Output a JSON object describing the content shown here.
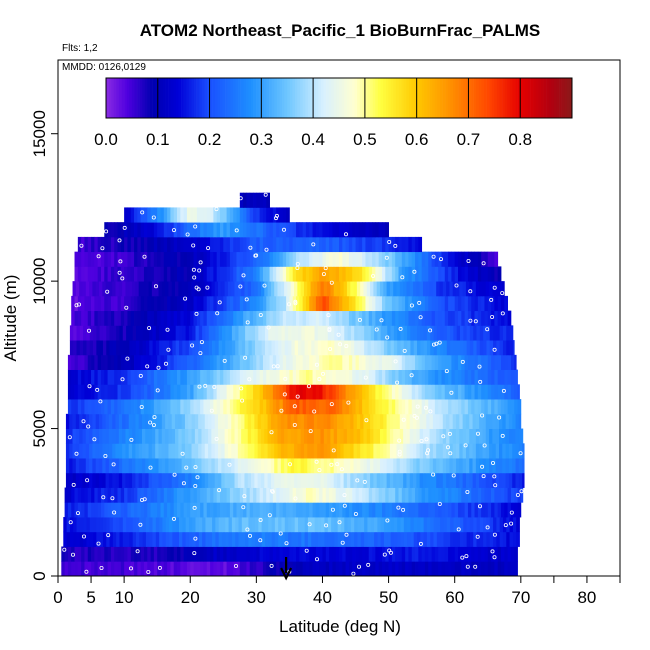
{
  "chart_data": {
    "type": "heatmap",
    "title": "ATOM2 Northeast_Pacific_1 BioBurnFrac_PALMS",
    "flights_label": "Flts: 1,2",
    "dates_label": "MMDD: 0126,0129",
    "xlabel": "Latitude (deg N)",
    "ylabel": "Altitude (m)",
    "xlim": [
      0,
      85
    ],
    "ylim": [
      0,
      17500
    ],
    "x_ticks": [
      0,
      5,
      10,
      20,
      30,
      40,
      50,
      60,
      70,
      80
    ],
    "x_tick_labels": [
      "0",
      "5",
      "10",
      "20",
      "30",
      "40",
      "50",
      "60",
      "70",
      "80"
    ],
    "x_minor_ticks": [
      75,
      85
    ],
    "y_ticks": [
      0,
      5000,
      10000,
      15000
    ],
    "y_tick_labels": [
      "0",
      "5000",
      "10000",
      "15000"
    ],
    "colorbar": {
      "min": 0.0,
      "max": 0.9,
      "tick_values": [
        0.0,
        0.1,
        0.2,
        0.3,
        0.4,
        0.5,
        0.6,
        0.7,
        0.8
      ],
      "tick_labels": [
        "0.0",
        "0.1",
        "0.2",
        "0.3",
        "0.4",
        "0.5",
        "0.6",
        "0.7",
        "0.8"
      ],
      "stops": [
        {
          "v": 0.0,
          "c": "#8a2be2"
        },
        {
          "v": 0.04,
          "c": "#5000e0"
        },
        {
          "v": 0.09,
          "c": "#0000b0"
        },
        {
          "v": 0.14,
          "c": "#0000d8"
        },
        {
          "v": 0.2,
          "c": "#1a50ff"
        },
        {
          "v": 0.28,
          "c": "#1e90ff"
        },
        {
          "v": 0.35,
          "c": "#6ec6ff"
        },
        {
          "v": 0.42,
          "c": "#d8f0ff"
        },
        {
          "v": 0.48,
          "c": "#ffffd0"
        },
        {
          "v": 0.53,
          "c": "#ffff40"
        },
        {
          "v": 0.6,
          "c": "#ffc800"
        },
        {
          "v": 0.67,
          "c": "#ff8c00"
        },
        {
          "v": 0.74,
          "c": "#ff4500"
        },
        {
          "v": 0.8,
          "c": "#e60000"
        },
        {
          "v": 0.86,
          "c": "#b00010"
        },
        {
          "v": 0.9,
          "c": "#8b1a1a"
        }
      ]
    },
    "marker_latitude": 34.5,
    "bin_height_m": 500,
    "rows": [
      {
        "alt": 250,
        "lat_min": 0.5,
        "lat_max": 69.5,
        "k": [
          [
            0,
            0.06
          ],
          [
            15,
            0.04
          ],
          [
            25,
            0.03
          ],
          [
            35,
            0.1
          ],
          [
            45,
            0.12
          ],
          [
            55,
            0.12
          ],
          [
            65,
            0.11
          ],
          [
            69.5,
            0.12
          ]
        ]
      },
      {
        "alt": 750,
        "lat_min": 0.5,
        "lat_max": 69.5,
        "k": [
          [
            0,
            0.07
          ],
          [
            15,
            0.07
          ],
          [
            24,
            0.12
          ],
          [
            35,
            0.14
          ],
          [
            45,
            0.14
          ],
          [
            55,
            0.16
          ],
          [
            69.5,
            0.12
          ]
        ]
      },
      {
        "alt": 1250,
        "lat_min": 0.8,
        "lat_max": 69.8,
        "k": [
          [
            0,
            0.12
          ],
          [
            10,
            0.16
          ],
          [
            20,
            0.22
          ],
          [
            30,
            0.26
          ],
          [
            40,
            0.24
          ],
          [
            50,
            0.22
          ],
          [
            60,
            0.18
          ],
          [
            69.8,
            0.14
          ]
        ]
      },
      {
        "alt": 1750,
        "lat_min": 0.8,
        "lat_max": 69.8,
        "k": [
          [
            0,
            0.14
          ],
          [
            10,
            0.2
          ],
          [
            20,
            0.3
          ],
          [
            28,
            0.34
          ],
          [
            40,
            0.34
          ],
          [
            50,
            0.3
          ],
          [
            60,
            0.22
          ],
          [
            69.8,
            0.14
          ]
        ]
      },
      {
        "alt": 2250,
        "lat_min": 1.0,
        "lat_max": 70.0,
        "k": [
          [
            0,
            0.15
          ],
          [
            10,
            0.22
          ],
          [
            20,
            0.3
          ],
          [
            30,
            0.32
          ],
          [
            40,
            0.3
          ],
          [
            50,
            0.26
          ],
          [
            60,
            0.2
          ],
          [
            70,
            0.14
          ]
        ]
      },
      {
        "alt": 2750,
        "lat_min": 1.0,
        "lat_max": 70.3,
        "k": [
          [
            0,
            0.13
          ],
          [
            10,
            0.18
          ],
          [
            20,
            0.3
          ],
          [
            30,
            0.4
          ],
          [
            38,
            0.48
          ],
          [
            45,
            0.42
          ],
          [
            55,
            0.3
          ],
          [
            65,
            0.22
          ],
          [
            70.3,
            0.18
          ]
        ]
      },
      {
        "alt": 3250,
        "lat_min": 1.2,
        "lat_max": 70.5,
        "k": [
          [
            0,
            0.1
          ],
          [
            10,
            0.16
          ],
          [
            20,
            0.26
          ],
          [
            28,
            0.4
          ],
          [
            38,
            0.46
          ],
          [
            45,
            0.38
          ],
          [
            55,
            0.28
          ],
          [
            65,
            0.2
          ],
          [
            70.5,
            0.16
          ]
        ]
      },
      {
        "alt": 3750,
        "lat_min": 1.2,
        "lat_max": 70.5,
        "k": [
          [
            0,
            0.14
          ],
          [
            10,
            0.24
          ],
          [
            20,
            0.34
          ],
          [
            28,
            0.44
          ],
          [
            36,
            0.54
          ],
          [
            44,
            0.48
          ],
          [
            55,
            0.36
          ],
          [
            65,
            0.28
          ],
          [
            70.5,
            0.24
          ]
        ]
      },
      {
        "alt": 4250,
        "lat_min": 1.2,
        "lat_max": 70.5,
        "k": [
          [
            0,
            0.16
          ],
          [
            10,
            0.28
          ],
          [
            20,
            0.36
          ],
          [
            28,
            0.5
          ],
          [
            34,
            0.62
          ],
          [
            40,
            0.66
          ],
          [
            46,
            0.56
          ],
          [
            55,
            0.4
          ],
          [
            65,
            0.3
          ],
          [
            70.5,
            0.26
          ]
        ]
      },
      {
        "alt": 4750,
        "lat_min": 1.2,
        "lat_max": 70.3,
        "k": [
          [
            0,
            0.16
          ],
          [
            10,
            0.26
          ],
          [
            20,
            0.36
          ],
          [
            28,
            0.52
          ],
          [
            34,
            0.64
          ],
          [
            40,
            0.66
          ],
          [
            46,
            0.6
          ],
          [
            55,
            0.42
          ],
          [
            65,
            0.3
          ],
          [
            70.3,
            0.26
          ]
        ]
      },
      {
        "alt": 5250,
        "lat_min": 1.2,
        "lat_max": 70.0,
        "k": [
          [
            0,
            0.14
          ],
          [
            10,
            0.24
          ],
          [
            20,
            0.36
          ],
          [
            28,
            0.52
          ],
          [
            34,
            0.66
          ],
          [
            40,
            0.68
          ],
          [
            46,
            0.6
          ],
          [
            55,
            0.44
          ],
          [
            65,
            0.32
          ],
          [
            70,
            0.26
          ]
        ]
      },
      {
        "alt": 5750,
        "lat_min": 1.5,
        "lat_max": 70.0,
        "k": [
          [
            0,
            0.16
          ],
          [
            10,
            0.24
          ],
          [
            20,
            0.38
          ],
          [
            30,
            0.58
          ],
          [
            36,
            0.72
          ],
          [
            42,
            0.7
          ],
          [
            48,
            0.56
          ],
          [
            58,
            0.4
          ],
          [
            70,
            0.28
          ]
        ]
      },
      {
        "alt": 6250,
        "lat_min": 1.5,
        "lat_max": 69.8,
        "k": [
          [
            0,
            0.12
          ],
          [
            10,
            0.18
          ],
          [
            20,
            0.3
          ],
          [
            30,
            0.58
          ],
          [
            36,
            0.8
          ],
          [
            40,
            0.78
          ],
          [
            46,
            0.6
          ],
          [
            55,
            0.38
          ],
          [
            69.8,
            0.22
          ]
        ]
      },
      {
        "alt": 6750,
        "lat_min": 1.5,
        "lat_max": 69.5,
        "k": [
          [
            0,
            0.12
          ],
          [
            10,
            0.18
          ],
          [
            20,
            0.3
          ],
          [
            30,
            0.44
          ],
          [
            38,
            0.5
          ],
          [
            46,
            0.44
          ],
          [
            55,
            0.3
          ],
          [
            69.5,
            0.2
          ]
        ]
      },
      {
        "alt": 7250,
        "lat_min": 1.5,
        "lat_max": 69.3,
        "k": [
          [
            0,
            0.04
          ],
          [
            10,
            0.1
          ],
          [
            20,
            0.22
          ],
          [
            30,
            0.38
          ],
          [
            36,
            0.46
          ],
          [
            42,
            0.5
          ],
          [
            50,
            0.44
          ],
          [
            58,
            0.3
          ],
          [
            69.3,
            0.18
          ]
        ]
      },
      {
        "alt": 7750,
        "lat_min": 1.8,
        "lat_max": 69.0,
        "k": [
          [
            0,
            0.05
          ],
          [
            10,
            0.1
          ],
          [
            20,
            0.2
          ],
          [
            28,
            0.34
          ],
          [
            36,
            0.46
          ],
          [
            42,
            0.48
          ],
          [
            50,
            0.36
          ],
          [
            60,
            0.24
          ],
          [
            69,
            0.16
          ]
        ]
      },
      {
        "alt": 8250,
        "lat_min": 1.8,
        "lat_max": 68.8,
        "k": [
          [
            0,
            0.03
          ],
          [
            10,
            0.08
          ],
          [
            20,
            0.16
          ],
          [
            26,
            0.3
          ],
          [
            32,
            0.44
          ],
          [
            38,
            0.46
          ],
          [
            44,
            0.4
          ],
          [
            50,
            0.3
          ],
          [
            60,
            0.2
          ],
          [
            68.8,
            0.16
          ]
        ]
      },
      {
        "alt": 8750,
        "lat_min": 2.0,
        "lat_max": 68.5,
        "k": [
          [
            0,
            0.04
          ],
          [
            10,
            0.08
          ],
          [
            20,
            0.14
          ],
          [
            28,
            0.3
          ],
          [
            34,
            0.4
          ],
          [
            40,
            0.42
          ],
          [
            46,
            0.34
          ],
          [
            55,
            0.22
          ],
          [
            68.5,
            0.14
          ]
        ]
      },
      {
        "alt": 9250,
        "lat_min": 2.0,
        "lat_max": 68.0,
        "k": [
          [
            0,
            0.02
          ],
          [
            10,
            0.06
          ],
          [
            20,
            0.12
          ],
          [
            28,
            0.24
          ],
          [
            34,
            0.38
          ],
          [
            40,
            0.74
          ],
          [
            44,
            0.6
          ],
          [
            50,
            0.34
          ],
          [
            58,
            0.2
          ],
          [
            68,
            0.14
          ]
        ]
      },
      {
        "alt": 9750,
        "lat_min": 2.2,
        "lat_max": 67.5,
        "k": [
          [
            0,
            0.03
          ],
          [
            10,
            0.06
          ],
          [
            20,
            0.1
          ],
          [
            30,
            0.24
          ],
          [
            36,
            0.5
          ],
          [
            40,
            0.7
          ],
          [
            44,
            0.56
          ],
          [
            50,
            0.3
          ],
          [
            58,
            0.18
          ],
          [
            67.5,
            0.12
          ]
        ]
      },
      {
        "alt": 10250,
        "lat_min": 2.5,
        "lat_max": 67.0,
        "k": [
          [
            0,
            0.03
          ],
          [
            10,
            0.06
          ],
          [
            20,
            0.1
          ],
          [
            30,
            0.26
          ],
          [
            36,
            0.56
          ],
          [
            40,
            0.66
          ],
          [
            46,
            0.56
          ],
          [
            52,
            0.3
          ],
          [
            60,
            0.16
          ],
          [
            67,
            0.08
          ]
        ]
      },
      {
        "alt": 10750,
        "lat_min": 2.5,
        "lat_max": 66.5,
        "k": [
          [
            0,
            0.02
          ],
          [
            10,
            0.06
          ],
          [
            20,
            0.1
          ],
          [
            30,
            0.22
          ],
          [
            36,
            0.38
          ],
          [
            42,
            0.48
          ],
          [
            50,
            0.36
          ],
          [
            58,
            0.18
          ],
          [
            66.5,
            0.04
          ]
        ]
      },
      {
        "alt": 11250,
        "lat_min": 3.0,
        "lat_max": 55.0,
        "k": [
          [
            0,
            0.04
          ],
          [
            10,
            0.08
          ],
          [
            20,
            0.12
          ],
          [
            30,
            0.22
          ],
          [
            40,
            0.22
          ],
          [
            50,
            0.18
          ],
          [
            55,
            0.14
          ]
        ]
      },
      {
        "alt": 11750,
        "lat_min": 7.0,
        "lat_max": 50.0,
        "k": [
          [
            7,
            0.08
          ],
          [
            15,
            0.14
          ],
          [
            20,
            0.24
          ],
          [
            25,
            0.3
          ],
          [
            32,
            0.22
          ],
          [
            40,
            0.14
          ],
          [
            50,
            0.1
          ]
        ]
      },
      {
        "alt": 12250,
        "lat_min": 10.0,
        "lat_max": 35.0,
        "k": [
          [
            10,
            0.12
          ],
          [
            16,
            0.3
          ],
          [
            20,
            0.46
          ],
          [
            24,
            0.4
          ],
          [
            30,
            0.18
          ],
          [
            35,
            0.12
          ]
        ]
      },
      {
        "alt": 12750,
        "lat_min": 27.5,
        "lat_max": 32.0,
        "k": [
          [
            27.5,
            0.1
          ],
          [
            32,
            0.1
          ]
        ]
      }
    ]
  }
}
